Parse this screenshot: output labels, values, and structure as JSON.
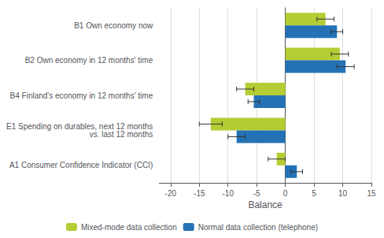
{
  "chart_data": {
    "type": "bar",
    "orientation": "horizontal",
    "xlabel": "Balance",
    "categories": [
      "B1 Own economy now",
      "B2 Own economy in 12 months' time",
      "B4 Finland's economy in 12 months' time",
      "E1 Spending on durables, next 12 months\nvs. last 12 months",
      "A1 Consumer Confidence Indicator (CCI)"
    ],
    "series": [
      {
        "name": "Mixed-mode data collection",
        "color": "#b5cc34",
        "values": [
          7.0,
          9.5,
          -7.0,
          -13.0,
          -1.5
        ],
        "errors": [
          1.5,
          1.5,
          1.5,
          2.0,
          1.5
        ]
      },
      {
        "name": "Normal data collection (telephone)",
        "color": "#2472b5",
        "values": [
          9.0,
          10.5,
          -5.5,
          -8.5,
          2.0
        ],
        "errors": [
          1.0,
          1.5,
          1.0,
          1.5,
          1.0
        ]
      }
    ],
    "xlim": [
      -22,
      15
    ],
    "xticks": [
      -20,
      -15,
      -10,
      -5,
      0,
      5,
      10,
      15
    ],
    "grid": true,
    "legend": "bottom"
  }
}
